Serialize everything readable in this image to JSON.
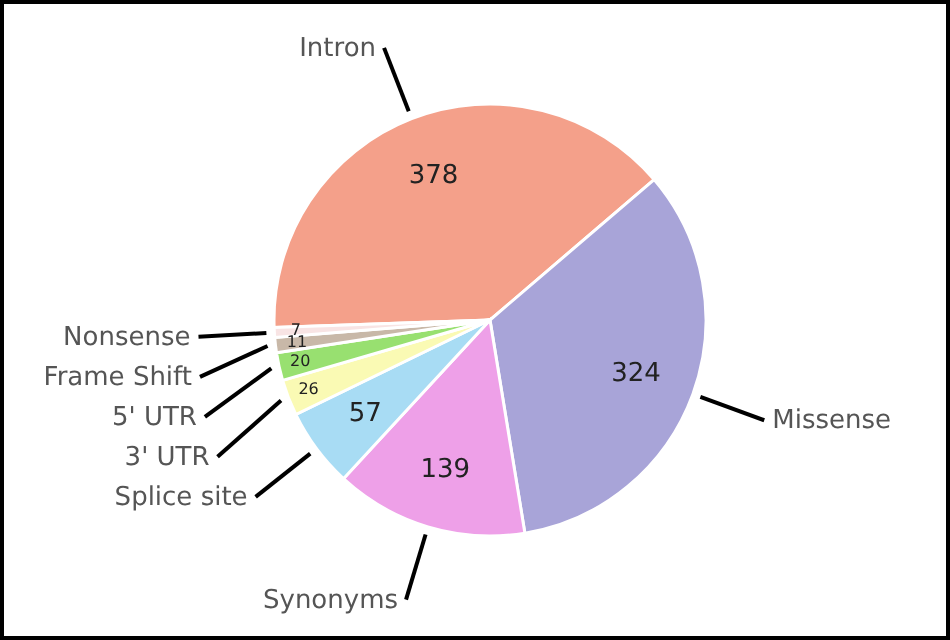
{
  "chart_data": {
    "type": "pie",
    "categories": [
      "Intron",
      "Missense",
      "Synonyms",
      "Splice site",
      "3' UTR",
      "5' UTR",
      "Frame Shift",
      "Nonsense"
    ],
    "values": [
      378,
      324,
      139,
      57,
      26,
      20,
      11,
      7
    ],
    "colors": [
      "#f4a08a",
      "#a8a4d8",
      "#eea0e8",
      "#a8dcf4",
      "#fafab4",
      "#98e070",
      "#c8b8a8",
      "#f8e4e4"
    ],
    "data_labels": true
  }
}
